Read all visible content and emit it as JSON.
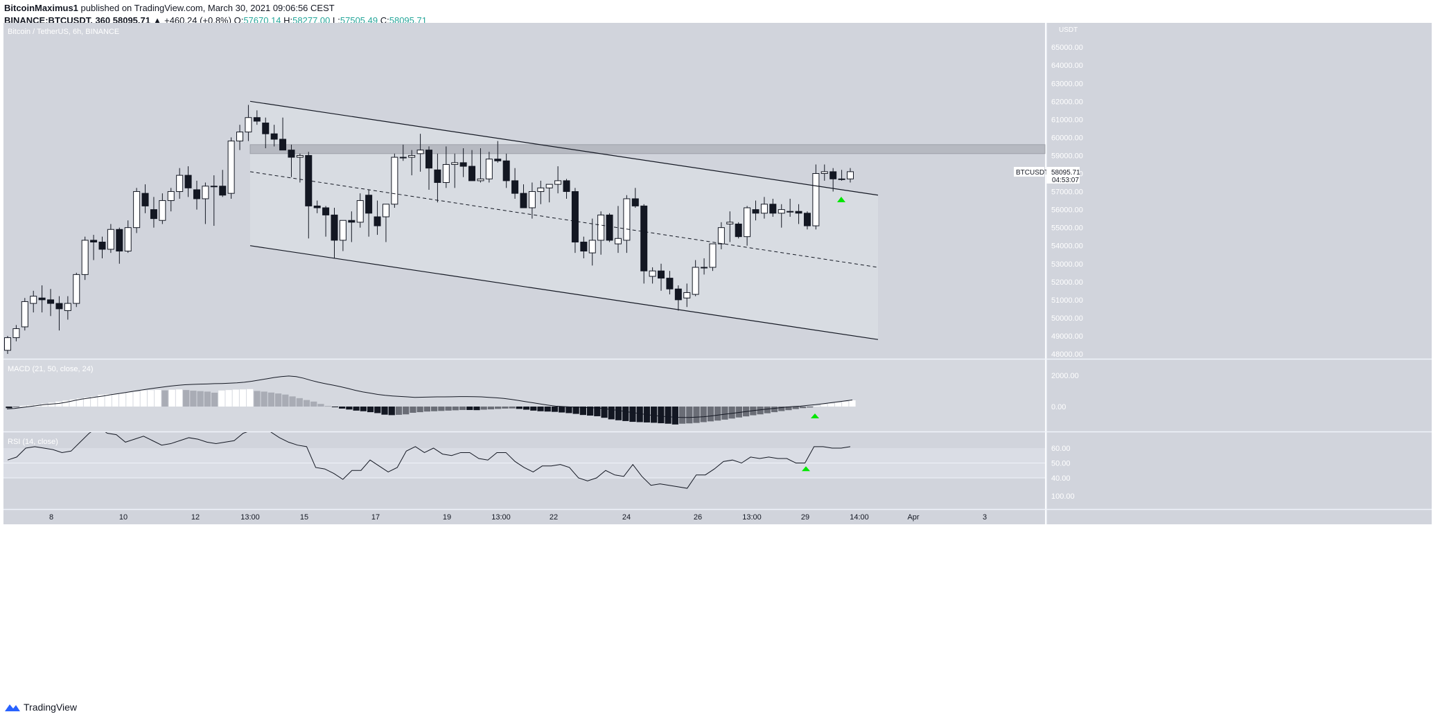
{
  "header": {
    "author": "BitcoinMaximus1",
    "published": "published on TradingView.com, March 30, 2021 09:06:56 CEST",
    "symbol_line": "BINANCE:BTCUSDT, 360",
    "last": "58095.71",
    "change": "▲ +460.24 (+0.8%)",
    "o_label": "O:",
    "o": "57670.14",
    "h_label": "H:",
    "h": "58277.00",
    "l_label": "L:",
    "l": "57505.49",
    "c_label": "C:",
    "c": "58095.71"
  },
  "footer": {
    "brand": "TradingView"
  },
  "chart_data": {
    "type": "candlestick",
    "title": "Bitcoin / TetherUS, 6h, BINANCE",
    "currency": "USDT",
    "price_axis_ticks": [
      "65000.00",
      "64000.00",
      "63000.00",
      "62000.00",
      "61000.00",
      "60000.00",
      "59000.00",
      "58000.00",
      "57000.00",
      "56000.00",
      "55000.00",
      "54000.00",
      "53000.00",
      "52000.00",
      "51000.00",
      "50000.00",
      "49000.00",
      "48000.00"
    ],
    "time_axis_labels": [
      "8",
      "10",
      "12",
      "13:00",
      "15",
      "17",
      "19",
      "13:00",
      "22",
      "24",
      "26",
      "13:00",
      "29",
      "14:00",
      "Apr",
      "3"
    ],
    "last_price_tag": {
      "symbol": "BTCUSDT",
      "price": "58095.71",
      "countdown": "04:53:07"
    },
    "resistance_zone": [
      59100,
      59600
    ],
    "candles_ohlc": [
      [
        48200,
        49000,
        48000,
        48900
      ],
      [
        48900,
        49600,
        48700,
        49400
      ],
      [
        49500,
        51100,
        49300,
        50900
      ],
      [
        50800,
        51500,
        50300,
        51200
      ],
      [
        51100,
        51800,
        50300,
        51000
      ],
      [
        51000,
        51600,
        50100,
        50800
      ],
      [
        50800,
        51200,
        49300,
        50500
      ],
      [
        50400,
        51200,
        49900,
        50800
      ],
      [
        50800,
        52500,
        50600,
        52400
      ],
      [
        52400,
        54500,
        52100,
        54300
      ],
      [
        54300,
        54600,
        53200,
        54200
      ],
      [
        54200,
        54500,
        53300,
        53800
      ],
      [
        53800,
        55200,
        53600,
        54900
      ],
      [
        54900,
        55000,
        53000,
        53700
      ],
      [
        53700,
        55400,
        53600,
        55000
      ],
      [
        55000,
        57200,
        54700,
        57000
      ],
      [
        56900,
        57400,
        55800,
        56200
      ],
      [
        56000,
        56700,
        55000,
        55500
      ],
      [
        55400,
        56900,
        55200,
        56500
      ],
      [
        56500,
        57200,
        55900,
        57000
      ],
      [
        57000,
        58300,
        56600,
        57900
      ],
      [
        57900,
        58400,
        56700,
        57200
      ],
      [
        57100,
        57600,
        56000,
        56600
      ],
      [
        56600,
        57500,
        55200,
        57300
      ],
      [
        57300,
        57900,
        55100,
        57300
      ],
      [
        57300,
        58200,
        56700,
        56800
      ],
      [
        56900,
        60000,
        56600,
        59800
      ],
      [
        59800,
        60700,
        59300,
        60300
      ],
      [
        60300,
        61800,
        59800,
        61100
      ],
      [
        61100,
        61500,
        60700,
        60900
      ],
      [
        60800,
        61100,
        59400,
        60200
      ],
      [
        60200,
        60700,
        59500,
        59900
      ],
      [
        59900,
        61100,
        59400,
        59300
      ],
      [
        59300,
        59600,
        57800,
        58900
      ],
      [
        58900,
        59100,
        57500,
        59000
      ],
      [
        59000,
        59200,
        54400,
        56200
      ],
      [
        56200,
        56500,
        55800,
        56100
      ],
      [
        56100,
        56200,
        54500,
        55700
      ],
      [
        55700,
        56100,
        53300,
        54300
      ],
      [
        54300,
        55300,
        53700,
        55400
      ],
      [
        55400,
        55900,
        54200,
        55300
      ],
      [
        55300,
        56900,
        55000,
        56500
      ],
      [
        56800,
        57100,
        54500,
        55800
      ],
      [
        55600,
        56500,
        54600,
        55100
      ],
      [
        55600,
        56100,
        54200,
        56300
      ],
      [
        56300,
        59100,
        56100,
        58900
      ],
      [
        58900,
        59600,
        58700,
        58900
      ],
      [
        58900,
        59300,
        57900,
        59000
      ],
      [
        59100,
        60200,
        58100,
        59300
      ],
      [
        59300,
        59500,
        57100,
        58300
      ],
      [
        58200,
        59100,
        56400,
        57500
      ],
      [
        57500,
        59500,
        57200,
        58500
      ],
      [
        58500,
        59100,
        57200,
        58600
      ],
      [
        58600,
        59400,
        57800,
        58400
      ],
      [
        58400,
        59300,
        57600,
        57600
      ],
      [
        57600,
        59400,
        57500,
        57700
      ],
      [
        57700,
        59200,
        57500,
        58800
      ],
      [
        58800,
        59800,
        58600,
        58700
      ],
      [
        58700,
        59100,
        57200,
        57600
      ],
      [
        57600,
        58300,
        56600,
        56900
      ],
      [
        56900,
        57400,
        56200,
        56100
      ],
      [
        56100,
        57500,
        55500,
        57000
      ],
      [
        57000,
        57600,
        56300,
        57200
      ],
      [
        57200,
        57400,
        56400,
        57400
      ],
      [
        57400,
        58400,
        56900,
        57600
      ],
      [
        57600,
        57700,
        56600,
        57000
      ],
      [
        57000,
        57200,
        53600,
        54200
      ],
      [
        54200,
        54500,
        53300,
        53700
      ],
      [
        53600,
        55500,
        52900,
        54300
      ],
      [
        54300,
        55900,
        53500,
        55700
      ],
      [
        55700,
        55800,
        54200,
        54300
      ],
      [
        54100,
        56200,
        53600,
        54400
      ],
      [
        54300,
        56800,
        53600,
        56600
      ],
      [
        56600,
        57200,
        56100,
        56200
      ],
      [
        56200,
        56300,
        51900,
        52600
      ],
      [
        52300,
        52800,
        51900,
        52600
      ],
      [
        52600,
        53000,
        51500,
        52200
      ],
      [
        52200,
        52600,
        51300,
        51600
      ],
      [
        51600,
        51800,
        50400,
        51000
      ],
      [
        51100,
        51900,
        50600,
        51400
      ],
      [
        51300,
        53200,
        51200,
        52800
      ],
      [
        52800,
        53300,
        52400,
        52800
      ],
      [
        52800,
        53900,
        52600,
        54100
      ],
      [
        54100,
        55300,
        53800,
        55000
      ],
      [
        55200,
        55900,
        54200,
        55300
      ],
      [
        55200,
        55300,
        54400,
        54500
      ],
      [
        54500,
        56200,
        54000,
        56100
      ],
      [
        56000,
        56500,
        55400,
        55800
      ],
      [
        55800,
        56700,
        55500,
        56300
      ],
      [
        56300,
        56600,
        55600,
        55800
      ],
      [
        55800,
        56300,
        55000,
        56000
      ],
      [
        55900,
        56600,
        55600,
        55900
      ],
      [
        55900,
        56300,
        55200,
        55800
      ],
      [
        55800,
        55900,
        54900,
        55100
      ],
      [
        55100,
        58500,
        54900,
        58000
      ],
      [
        58000,
        58500,
        57600,
        58100
      ],
      [
        58100,
        58300,
        57000,
        57700
      ],
      [
        57700,
        58200,
        57600,
        57700
      ],
      [
        57700,
        58300,
        57500,
        58100
      ]
    ],
    "channel_upper": [
      [
        361,
        62000
      ],
      [
        1267,
        56800
      ]
    ],
    "channel_mid": [
      [
        361,
        58100
      ],
      [
        1267,
        52800
      ]
    ],
    "channel_lower": [
      [
        361,
        54000
      ],
      [
        1267,
        48800
      ]
    ],
    "breakout_markers_price": [
      [
        1214,
        56600
      ]
    ],
    "macd": {
      "label": "MACD (21, 50, close, 24)",
      "ticks": [
        "2000.00",
        "0.00"
      ],
      "histogram": [
        -100,
        -40,
        50,
        80,
        120,
        180,
        250,
        320,
        380,
        450,
        520,
        580,
        640,
        760,
        800,
        820,
        870,
        920,
        960,
        1040,
        1050,
        1070,
        1040,
        1080,
        1100,
        1060,
        1020,
        990,
        960,
        890,
        1030,
        1060,
        1090,
        1100,
        1120,
        1000,
        960,
        900,
        840,
        770,
        650,
        540,
        420,
        320,
        170,
        40,
        -20,
        -130,
        -190,
        -260,
        -300,
        -360,
        -420,
        -520,
        -550,
        -530,
        -500,
        -400,
        -360,
        -320,
        -300,
        -280,
        -260,
        -240,
        -220,
        -220,
        -230,
        -200,
        -180,
        -150,
        -130,
        -120,
        -150,
        -200,
        -260,
        -300,
        -320,
        -340,
        -380,
        -420,
        -470,
        -540,
        -580,
        -620,
        -720,
        -820,
        -880,
        -930,
        -980,
        -1000,
        -1020,
        -1040,
        -1070,
        -1100,
        -1150,
        -1100,
        -1080,
        -1050,
        -1000,
        -950,
        -900,
        -840,
        -770,
        -700,
        -630,
        -560,
        -500,
        -430,
        -360,
        -290,
        -230,
        -160,
        -100,
        -60,
        40,
        150,
        200,
        260,
        320,
        400
      ],
      "line": [
        -150,
        -120,
        -60,
        0,
        60,
        120,
        160,
        200,
        280,
        380,
        470,
        540,
        610,
        680,
        760,
        830,
        900,
        980,
        1050,
        1120,
        1190,
        1250,
        1310,
        1360,
        1400,
        1420,
        1440,
        1450,
        1470,
        1480,
        1500,
        1520,
        1560,
        1620,
        1700,
        1780,
        1860,
        1920,
        1960,
        1920,
        1820,
        1680,
        1560,
        1460,
        1370,
        1270,
        1160,
        1040,
        940,
        860,
        780,
        720,
        680,
        650,
        620,
        590,
        600,
        610,
        620,
        625,
        630,
        640,
        640,
        635,
        620,
        590,
        560,
        520,
        460,
        390,
        310,
        240,
        160,
        90,
        30,
        0,
        -20,
        -40,
        -60,
        -80,
        -110,
        -160,
        -220,
        -290,
        -360,
        -430,
        -500,
        -560,
        -610,
        -650,
        -680,
        -700,
        -700,
        -680,
        -650,
        -600,
        -540,
        -480,
        -420,
        -360,
        -300,
        -240,
        -190,
        -140,
        -90,
        -40,
        0,
        30,
        80,
        120,
        180,
        240,
        300,
        360,
        420
      ]
    },
    "rsi": {
      "label": "RSI (14, close)",
      "ticks": [
        "60.00",
        "50.00",
        "40.00",
        "100.00"
      ],
      "values": [
        52,
        54,
        60,
        61,
        60,
        59,
        57,
        58,
        64,
        70,
        74,
        70,
        69,
        64,
        66,
        68,
        65,
        62,
        63,
        65,
        67,
        66,
        64,
        63,
        64,
        65,
        70,
        72,
        76,
        71,
        67,
        64,
        62,
        61,
        47,
        46,
        43,
        39,
        45,
        45,
        52,
        48,
        44,
        47,
        58,
        61,
        57,
        60,
        56,
        55,
        57,
        57,
        53,
        52,
        57,
        57,
        51,
        47,
        44,
        48,
        48,
        49,
        47,
        40,
        38,
        40,
        45,
        42,
        41,
        49,
        41,
        35,
        36,
        35,
        34,
        33,
        42,
        42,
        46,
        51,
        52,
        50,
        54,
        53,
        54,
        53,
        53,
        50,
        50,
        61,
        61,
        60,
        60,
        61
      ]
    },
    "rsi_marker": 52
  }
}
